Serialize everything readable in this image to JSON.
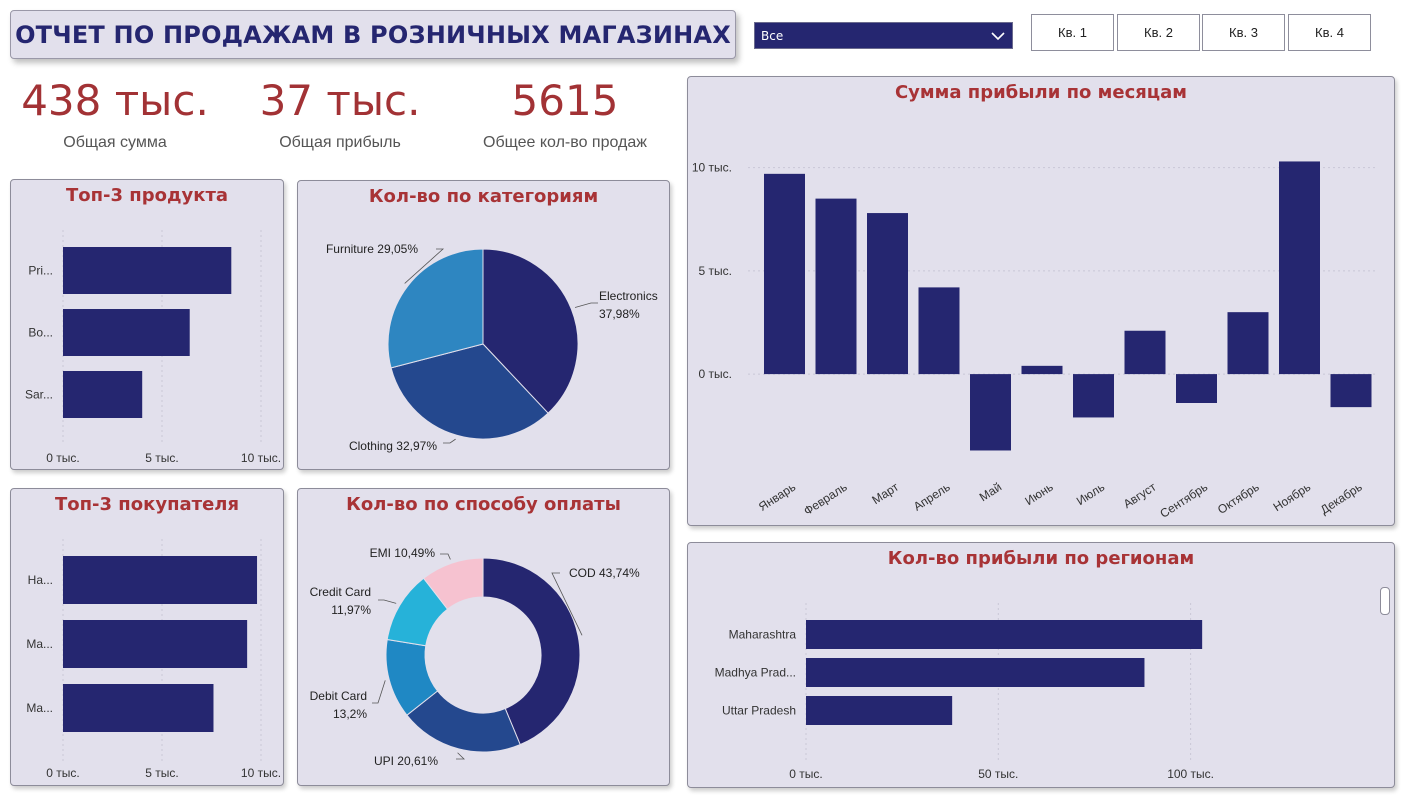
{
  "header": {
    "title": "ОТЧЕТ ПО ПРОДАЖАМ В РОЗНИЧНЫХ МАГАЗИНАХ",
    "dropdown_value": "Все",
    "quarters": [
      "Кв. 1",
      "Кв. 2",
      "Кв. 3",
      "Кв. 4"
    ]
  },
  "kpis": [
    {
      "value": "438 тыс.",
      "label": "Общая сумма"
    },
    {
      "value": "37 тыс.",
      "label": "Общая прибыль"
    },
    {
      "value": "5615",
      "label": "Общее кол-во продаж"
    }
  ],
  "colors": {
    "accent": "#252670",
    "title_red": "#a83336",
    "card_bg": "#e2e0ec"
  },
  "chart_data": [
    {
      "id": "top_products",
      "type": "bar",
      "orientation": "horizontal",
      "title": "Топ-3 продукта",
      "categories": [
        "Pri...",
        "Bo...",
        "Sar..."
      ],
      "values": [
        8500,
        6400,
        4000
      ],
      "xlim": [
        0,
        10000
      ],
      "ticks": [
        {
          "v": 0,
          "label": "0 тыс."
        },
        {
          "v": 5000,
          "label": "5 тыс."
        },
        {
          "v": 10000,
          "label": "10 тыс."
        }
      ]
    },
    {
      "id": "categories",
      "type": "pie",
      "title": "Кол-во по категориям",
      "slices": [
        {
          "name": "Electronics",
          "pct": 37.98,
          "label": "Electronics 37,98%",
          "color": "#252670"
        },
        {
          "name": "Clothing",
          "pct": 32.97,
          "label": "Clothing 32,97%",
          "color": "#24488e"
        },
        {
          "name": "Furniture",
          "pct": 29.05,
          "label": "Furniture 29,05%",
          "color": "#2e86c1"
        }
      ]
    },
    {
      "id": "monthly_profit",
      "type": "bar",
      "title": "Сумма прибыли по месяцам",
      "categories": [
        "Январь",
        "Февраль",
        "Март",
        "Апрель",
        "Май",
        "Июнь",
        "Июль",
        "Август",
        "Сентябрь",
        "Октябрь",
        "Ноябрь",
        "Декабрь"
      ],
      "values": [
        9700,
        8500,
        7800,
        4200,
        -3700,
        400,
        -2100,
        2100,
        -1400,
        3000,
        10300,
        -1600
      ],
      "ylim": [
        -4500,
        11000
      ],
      "ticks": [
        {
          "v": 0,
          "label": "0 тыс."
        },
        {
          "v": 5000,
          "label": "5 тыс."
        },
        {
          "v": 10000,
          "label": "10 тыс."
        }
      ],
      "grid": true
    },
    {
      "id": "top_customers",
      "type": "bar",
      "orientation": "horizontal",
      "title": "Топ-3 покупателя",
      "categories": [
        "Ha...",
        "Ma...",
        "Ma..."
      ],
      "values": [
        9800,
        9300,
        7600
      ],
      "xlim": [
        0,
        10000
      ],
      "ticks": [
        {
          "v": 0,
          "label": "0 тыс."
        },
        {
          "v": 5000,
          "label": "5 тыс."
        },
        {
          "v": 10000,
          "label": "10 тыс."
        }
      ]
    },
    {
      "id": "payment_methods",
      "type": "pie",
      "donut": true,
      "title": "Кол-во по способу оплаты",
      "slices": [
        {
          "name": "COD",
          "pct": 43.74,
          "label": "COD 43,74%",
          "color": "#252670"
        },
        {
          "name": "UPI",
          "pct": 20.61,
          "label": "UPI 20,61%",
          "color": "#24488e"
        },
        {
          "name": "Debit Card",
          "pct": 13.2,
          "label": "Debit Card 13,2%",
          "color": "#1f88c4"
        },
        {
          "name": "Credit Card",
          "pct": 11.97,
          "label": "Credit Card 11,97%",
          "color": "#26b2d9"
        },
        {
          "name": "EMI",
          "pct": 10.49,
          "label": "EMI 10,49%",
          "color": "#f6c2d0"
        }
      ]
    },
    {
      "id": "regions",
      "type": "bar",
      "orientation": "horizontal",
      "title": "Кол-во прибыли по регионам",
      "categories": [
        "Maharashtra",
        "Madhya Prad...",
        "Uttar Pradesh"
      ],
      "values": [
        103000,
        88000,
        38000
      ],
      "xlim": [
        0,
        130000
      ],
      "ticks": [
        {
          "v": 0,
          "label": "0 тыс."
        },
        {
          "v": 50000,
          "label": "50 тыс."
        },
        {
          "v": 100000,
          "label": "100 тыс."
        }
      ]
    }
  ]
}
